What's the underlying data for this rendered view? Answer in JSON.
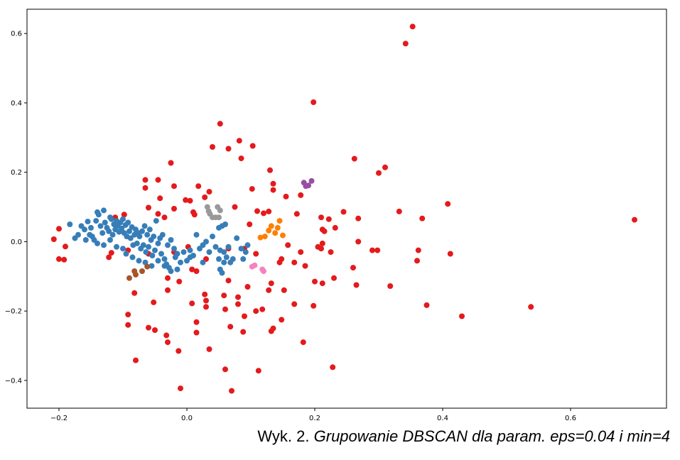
{
  "caption": {
    "prefix": "Wyk. 2. ",
    "text": "Grupowanie DBSCAN dla param. eps=0.04 i min=4"
  },
  "chart_data": {
    "type": "scatter",
    "title": "",
    "xlabel": "",
    "ylabel": "",
    "xlim": [
      -0.25,
      0.75
    ],
    "ylim": [
      -0.48,
      0.67
    ],
    "xticks": [
      -0.2,
      0.0,
      0.2,
      0.4,
      0.6
    ],
    "xtick_labels": [
      "−0.2",
      "0.0",
      "0.2",
      "0.4",
      "0.6"
    ],
    "yticks": [
      -0.4,
      -0.2,
      0.0,
      0.2,
      0.4,
      0.6
    ],
    "ytick_labels": [
      "−0.4",
      "−0.2",
      "0.0",
      "0.2",
      "0.4",
      "0.6"
    ],
    "grid": false,
    "legend": "none",
    "series": [
      {
        "color": "#e41a1c",
        "points": [
          [
            0.353,
            0.62
          ],
          [
            0.342,
            0.571
          ],
          [
            0.198,
            0.402
          ],
          [
            0.052,
            0.34
          ],
          [
            0.082,
            0.291
          ],
          [
            0.04,
            0.273
          ],
          [
            0.065,
            0.268
          ],
          [
            0.103,
            0.276
          ],
          [
            0.085,
            0.24
          ],
          [
            0.262,
            0.239
          ],
          [
            0.31,
            0.214
          ],
          [
            0.3,
            0.198
          ],
          [
            -0.025,
            0.227
          ],
          [
            0.13,
            0.206
          ],
          [
            -0.065,
            0.178
          ],
          [
            -0.045,
            0.178
          ],
          [
            -0.02,
            0.16
          ],
          [
            0.018,
            0.16
          ],
          [
            0.035,
            0.144
          ],
          [
            -0.065,
            0.155
          ],
          [
            0.102,
            0.152
          ],
          [
            0.135,
            0.167
          ],
          [
            0.135,
            0.149
          ],
          [
            0.155,
            0.13
          ],
          [
            0.178,
            0.134
          ],
          [
            0.028,
            0.128
          ],
          [
            -0.002,
            0.12
          ],
          [
            0.005,
            0.118
          ],
          [
            -0.042,
            0.125
          ],
          [
            -0.06,
            0.098
          ],
          [
            -0.02,
            0.095
          ],
          [
            0.11,
            0.088
          ],
          [
            0.128,
            0.087
          ],
          [
            0.12,
            0.082
          ],
          [
            0.172,
            0.08
          ],
          [
            0.222,
            0.065
          ],
          [
            0.21,
            0.07
          ],
          [
            0.245,
            0.086
          ],
          [
            0.332,
            0.087
          ],
          [
            0.408,
            0.109
          ],
          [
            0.7,
            0.063
          ],
          [
            0.075,
            0.1
          ],
          [
            0.098,
            0.05
          ],
          [
            -0.112,
            0.07
          ],
          [
            -0.098,
            0.078
          ],
          [
            -0.045,
            0.08
          ],
          [
            -0.035,
            0.07
          ],
          [
            0.01,
            0.085
          ],
          [
            0.012,
            0.078
          ],
          [
            0.212,
            0.035
          ],
          [
            0.215,
            0.03
          ],
          [
            0.268,
            0.067
          ],
          [
            0.232,
            0.04
          ],
          [
            0.368,
            0.067
          ],
          [
            -0.208,
            0.007
          ],
          [
            -0.2,
            0.037
          ],
          [
            -0.19,
            -0.014
          ],
          [
            -0.2,
            -0.05
          ],
          [
            -0.192,
            -0.052
          ],
          [
            -0.118,
            -0.032
          ],
          [
            -0.122,
            -0.045
          ],
          [
            -0.092,
            -0.025
          ],
          [
            -0.06,
            -0.035
          ],
          [
            -0.02,
            -0.03
          ],
          [
            0.002,
            -0.015
          ],
          [
            0.03,
            -0.05
          ],
          [
            0.065,
            -0.02
          ],
          [
            0.09,
            -0.02
          ],
          [
            0.108,
            -0.035
          ],
          [
            0.158,
            -0.01
          ],
          [
            0.148,
            -0.05
          ],
          [
            0.145,
            -0.06
          ],
          [
            0.168,
            -0.06
          ],
          [
            0.178,
            -0.03
          ],
          [
            0.185,
            -0.07
          ],
          [
            0.205,
            -0.015
          ],
          [
            0.212,
            -0.005
          ],
          [
            0.21,
            -0.02
          ],
          [
            0.225,
            -0.03
          ],
          [
            0.268,
            0.0
          ],
          [
            0.29,
            -0.025
          ],
          [
            0.298,
            -0.025
          ],
          [
            0.362,
            -0.025
          ],
          [
            0.36,
            -0.055
          ],
          [
            0.412,
            -0.035
          ],
          [
            0.26,
            -0.075
          ],
          [
            0.2,
            -0.115
          ],
          [
            0.212,
            -0.12
          ],
          [
            0.23,
            -0.105
          ],
          [
            0.265,
            -0.125
          ],
          [
            0.318,
            -0.128
          ],
          [
            0.375,
            -0.183
          ],
          [
            0.43,
            -0.215
          ],
          [
            0.538,
            -0.188
          ],
          [
            -0.082,
            -0.148
          ],
          [
            -0.052,
            -0.175
          ],
          [
            -0.03,
            -0.105
          ],
          [
            -0.012,
            -0.115
          ],
          [
            -0.03,
            -0.14
          ],
          [
            0.008,
            -0.08
          ],
          [
            0.015,
            -0.085
          ],
          [
            0.065,
            -0.112
          ],
          [
            0.095,
            -0.13
          ],
          [
            0.132,
            -0.12
          ],
          [
            0.128,
            -0.14
          ],
          [
            0.152,
            -0.14
          ],
          [
            0.168,
            -0.18
          ],
          [
            0.198,
            -0.185
          ],
          [
            0.118,
            -0.195
          ],
          [
            0.108,
            -0.2
          ],
          [
            0.148,
            -0.225
          ],
          [
            0.058,
            -0.155
          ],
          [
            0.08,
            -0.18
          ],
          [
            0.08,
            -0.16
          ],
          [
            0.028,
            -0.152
          ],
          [
            0.03,
            -0.17
          ],
          [
            0.03,
            -0.188
          ],
          [
            0.008,
            -0.178
          ],
          [
            0.06,
            -0.195
          ],
          [
            0.09,
            -0.215
          ],
          [
            0.015,
            -0.232
          ],
          [
            0.015,
            -0.262
          ],
          [
            0.035,
            -0.31
          ],
          [
            0.068,
            -0.245
          ],
          [
            0.088,
            -0.26
          ],
          [
            0.132,
            -0.258
          ],
          [
            0.135,
            -0.25
          ],
          [
            -0.092,
            -0.21
          ],
          [
            -0.092,
            -0.24
          ],
          [
            -0.06,
            -0.248
          ],
          [
            -0.05,
            -0.255
          ],
          [
            -0.032,
            -0.27
          ],
          [
            -0.03,
            -0.29
          ],
          [
            -0.013,
            -0.315
          ],
          [
            -0.08,
            -0.342
          ],
          [
            0.06,
            -0.368
          ],
          [
            0.112,
            -0.372
          ],
          [
            0.182,
            -0.29
          ],
          [
            0.228,
            -0.362
          ],
          [
            -0.01,
            -0.423
          ],
          [
            0.07,
            -0.43
          ]
        ]
      },
      {
        "color": "#377eb8",
        "points": [
          [
            -0.183,
            0.05
          ],
          [
            -0.165,
            0.045
          ],
          [
            -0.16,
            0.035
          ],
          [
            -0.15,
            0.04
          ],
          [
            -0.148,
            0.015
          ],
          [
            -0.142,
            0.06
          ],
          [
            -0.14,
            0.085
          ],
          [
            -0.138,
            0.078
          ],
          [
            -0.135,
            0.045
          ],
          [
            -0.132,
            0.025
          ],
          [
            -0.13,
            0.09
          ],
          [
            -0.128,
            0.055
          ],
          [
            -0.125,
            0.04
          ],
          [
            -0.122,
            0.03
          ],
          [
            -0.12,
            0.07
          ],
          [
            -0.118,
            0.065
          ],
          [
            -0.116,
            0.02
          ],
          [
            -0.114,
            0.05
          ],
          [
            -0.112,
            0.035
          ],
          [
            -0.11,
            0.06
          ],
          [
            -0.108,
            0.045
          ],
          [
            -0.106,
            0.028
          ],
          [
            -0.104,
            0.055
          ],
          [
            -0.102,
            0.038
          ],
          [
            -0.1,
            0.065
          ],
          [
            -0.098,
            0.025
          ],
          [
            -0.096,
            0.048
          ],
          [
            -0.094,
            0.015
          ],
          [
            -0.092,
            0.055
          ],
          [
            -0.09,
            0.03
          ],
          [
            -0.088,
            0.01
          ],
          [
            -0.086,
            0.042
          ],
          [
            -0.084,
            -0.01
          ],
          [
            -0.082,
            0.02
          ],
          [
            -0.08,
            0.035
          ],
          [
            -0.078,
            -0.005
          ],
          [
            -0.076,
            0.025
          ],
          [
            -0.074,
            0.015
          ],
          [
            -0.072,
            -0.02
          ],
          [
            -0.07,
            0.03
          ],
          [
            -0.068,
            -0.01
          ],
          [
            -0.066,
            0.045
          ],
          [
            -0.064,
            -0.03
          ],
          [
            -0.062,
            0.02
          ],
          [
            -0.06,
            -0.015
          ],
          [
            -0.058,
            0.035
          ],
          [
            -0.056,
            0.005
          ],
          [
            -0.054,
            -0.04
          ],
          [
            -0.052,
            0.015
          ],
          [
            -0.05,
            -0.025
          ],
          [
            -0.048,
            0.06
          ],
          [
            -0.045,
            -0.005
          ],
          [
            -0.042,
            0.01
          ],
          [
            -0.04,
            -0.035
          ],
          [
            -0.038,
            0.02
          ],
          [
            -0.035,
            -0.05
          ],
          [
            -0.032,
            -0.065
          ],
          [
            -0.03,
            -0.01
          ],
          [
            -0.028,
            -0.075
          ],
          [
            -0.025,
            0.005
          ],
          [
            -0.02,
            -0.02
          ],
          [
            -0.018,
            -0.045
          ],
          [
            -0.015,
            -0.035
          ],
          [
            -0.01,
            -0.06
          ],
          [
            -0.005,
            -0.03
          ],
          [
            0.0,
            -0.055
          ],
          [
            0.005,
            -0.025
          ],
          [
            0.01,
            -0.04
          ],
          [
            0.015,
            0.02
          ],
          [
            0.02,
            -0.02
          ],
          [
            0.025,
            -0.01
          ],
          [
            0.03,
            0.0
          ],
          [
            0.035,
            -0.03
          ],
          [
            0.04,
            0.015
          ],
          [
            0.045,
            -0.015
          ],
          [
            0.05,
            0.04
          ],
          [
            0.052,
            -0.025
          ],
          [
            0.055,
            0.045
          ],
          [
            0.058,
            -0.03
          ],
          [
            0.06,
            0.05
          ],
          [
            0.062,
            -0.045
          ],
          [
            0.065,
            -0.015
          ],
          [
            0.068,
            -0.06
          ],
          [
            0.072,
            -0.05
          ],
          [
            0.078,
            0.01
          ],
          [
            0.085,
            -0.02
          ],
          [
            0.088,
            -0.05
          ],
          [
            0.092,
            -0.03
          ],
          [
            0.095,
            -0.01
          ],
          [
            0.05,
            -0.05
          ],
          [
            0.058,
            -0.06
          ],
          [
            0.055,
            -0.09
          ],
          [
            0.052,
            -0.08
          ],
          [
            -0.17,
            0.02
          ],
          [
            -0.175,
            0.01
          ],
          [
            -0.158,
            0.005
          ],
          [
            -0.152,
            0.02
          ],
          [
            -0.145,
            0.005
          ],
          [
            -0.155,
            0.058
          ],
          [
            -0.14,
            -0.005
          ],
          [
            -0.13,
            -0.01
          ],
          [
            -0.12,
            0.005
          ],
          [
            -0.11,
            -0.015
          ],
          [
            -0.1,
            -0.02
          ],
          [
            -0.095,
            -0.035
          ],
          [
            -0.085,
            -0.045
          ],
          [
            -0.075,
            -0.055
          ],
          [
            -0.065,
            -0.06
          ],
          [
            -0.055,
            -0.07
          ],
          [
            -0.045,
            -0.055
          ],
          [
            -0.035,
            -0.07
          ],
          [
            -0.025,
            -0.085
          ],
          [
            -0.015,
            -0.08
          ],
          [
            0.005,
            -0.045
          ],
          [
            0.025,
            -0.06
          ]
        ]
      },
      {
        "color": "#999999",
        "points": [
          [
            0.032,
            0.1
          ],
          [
            0.034,
            0.088
          ],
          [
            0.036,
            0.08
          ],
          [
            0.04,
            0.07
          ],
          [
            0.045,
            0.07
          ],
          [
            0.05,
            0.07
          ],
          [
            0.048,
            0.1
          ],
          [
            0.052,
            0.09
          ]
        ]
      },
      {
        "color": "#984ea3",
        "points": [
          [
            0.183,
            0.17
          ],
          [
            0.186,
            0.16
          ],
          [
            0.19,
            0.162
          ],
          [
            0.195,
            0.175
          ]
        ]
      },
      {
        "color": "#ff7f00",
        "points": [
          [
            0.115,
            0.012
          ],
          [
            0.122,
            0.015
          ],
          [
            0.128,
            0.032
          ],
          [
            0.132,
            0.045
          ],
          [
            0.138,
            0.025
          ],
          [
            0.142,
            0.04
          ],
          [
            0.145,
            0.06
          ],
          [
            0.15,
            0.018
          ]
        ]
      },
      {
        "color": "#a65628",
        "points": [
          [
            -0.09,
            -0.105
          ],
          [
            -0.082,
            -0.085
          ],
          [
            -0.08,
            -0.095
          ],
          [
            -0.07,
            -0.085
          ],
          [
            -0.062,
            -0.072
          ]
        ]
      },
      {
        "color": "#f781bf",
        "points": [
          [
            0.102,
            -0.072
          ],
          [
            0.106,
            -0.068
          ],
          [
            0.118,
            -0.08
          ],
          [
            0.12,
            -0.085
          ]
        ]
      }
    ]
  }
}
